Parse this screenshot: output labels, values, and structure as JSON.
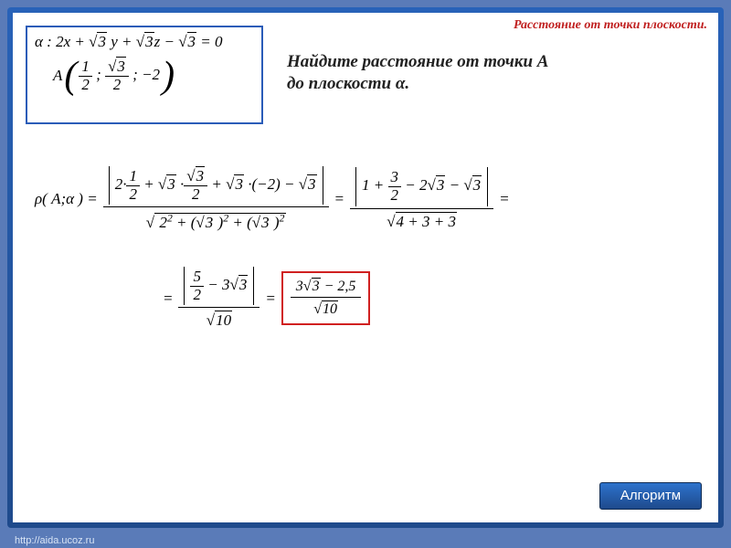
{
  "topic": "Расстояние от точки плоскости.",
  "task_line1": "Найдите расстояние от точки А",
  "task_line2": "до плоскости α.",
  "given": {
    "plane_label": "α : ",
    "plane_eq_a": "2x + ",
    "plane_eq_b": " y + ",
    "plane_eq_c": "z − ",
    "plane_eq_d": " = 0",
    "root3": "3",
    "point_label": "A",
    "p_x_n": "1",
    "p_x_d": "2",
    "p_y_rad": "3",
    "p_y_d": "2",
    "p_z": "−2",
    "sep": ";"
  },
  "calc": {
    "rho_label": "ρ( A;α ) =",
    "eq": "=",
    "num1_a": "2·",
    "num1_f1n": "1",
    "num1_f1d": "2",
    "num1_b": " + ",
    "num1_r1": "3",
    "num1_c": " ·",
    "num1_f2n_rad": "3",
    "num1_f2d": "2",
    "num1_d": " + ",
    "num1_r2": "3",
    "num1_e": " ·(−2) − ",
    "num1_r3": "3",
    "den1_a": "2",
    "den1_a_sup": "2",
    "den1_plus": " + (",
    "den1_r": "3",
    "den1_close": " )",
    "den1_sup": "2",
    "num2_a": "1 + ",
    "num2_fn": "3",
    "num2_fd": "2",
    "num2_b": " − 2",
    "num2_r1": "3",
    "num2_c": " − ",
    "num2_r2": "3",
    "den2": "4 + 3 + 3",
    "num3_fn": "5",
    "num3_fd": "2",
    "num3_b": " − 3",
    "num3_r": "3",
    "den3": "10",
    "ans_num_a": "3",
    "ans_num_r": "3",
    "ans_num_b": " − 2,5",
    "ans_den": "10"
  },
  "algo_btn": "Алгоритм",
  "footer": "http://aida.ucoz.ru",
  "colors": {
    "frame": "#1e4a8c",
    "accent": "#c02020",
    "border": "#2a5cb8"
  }
}
